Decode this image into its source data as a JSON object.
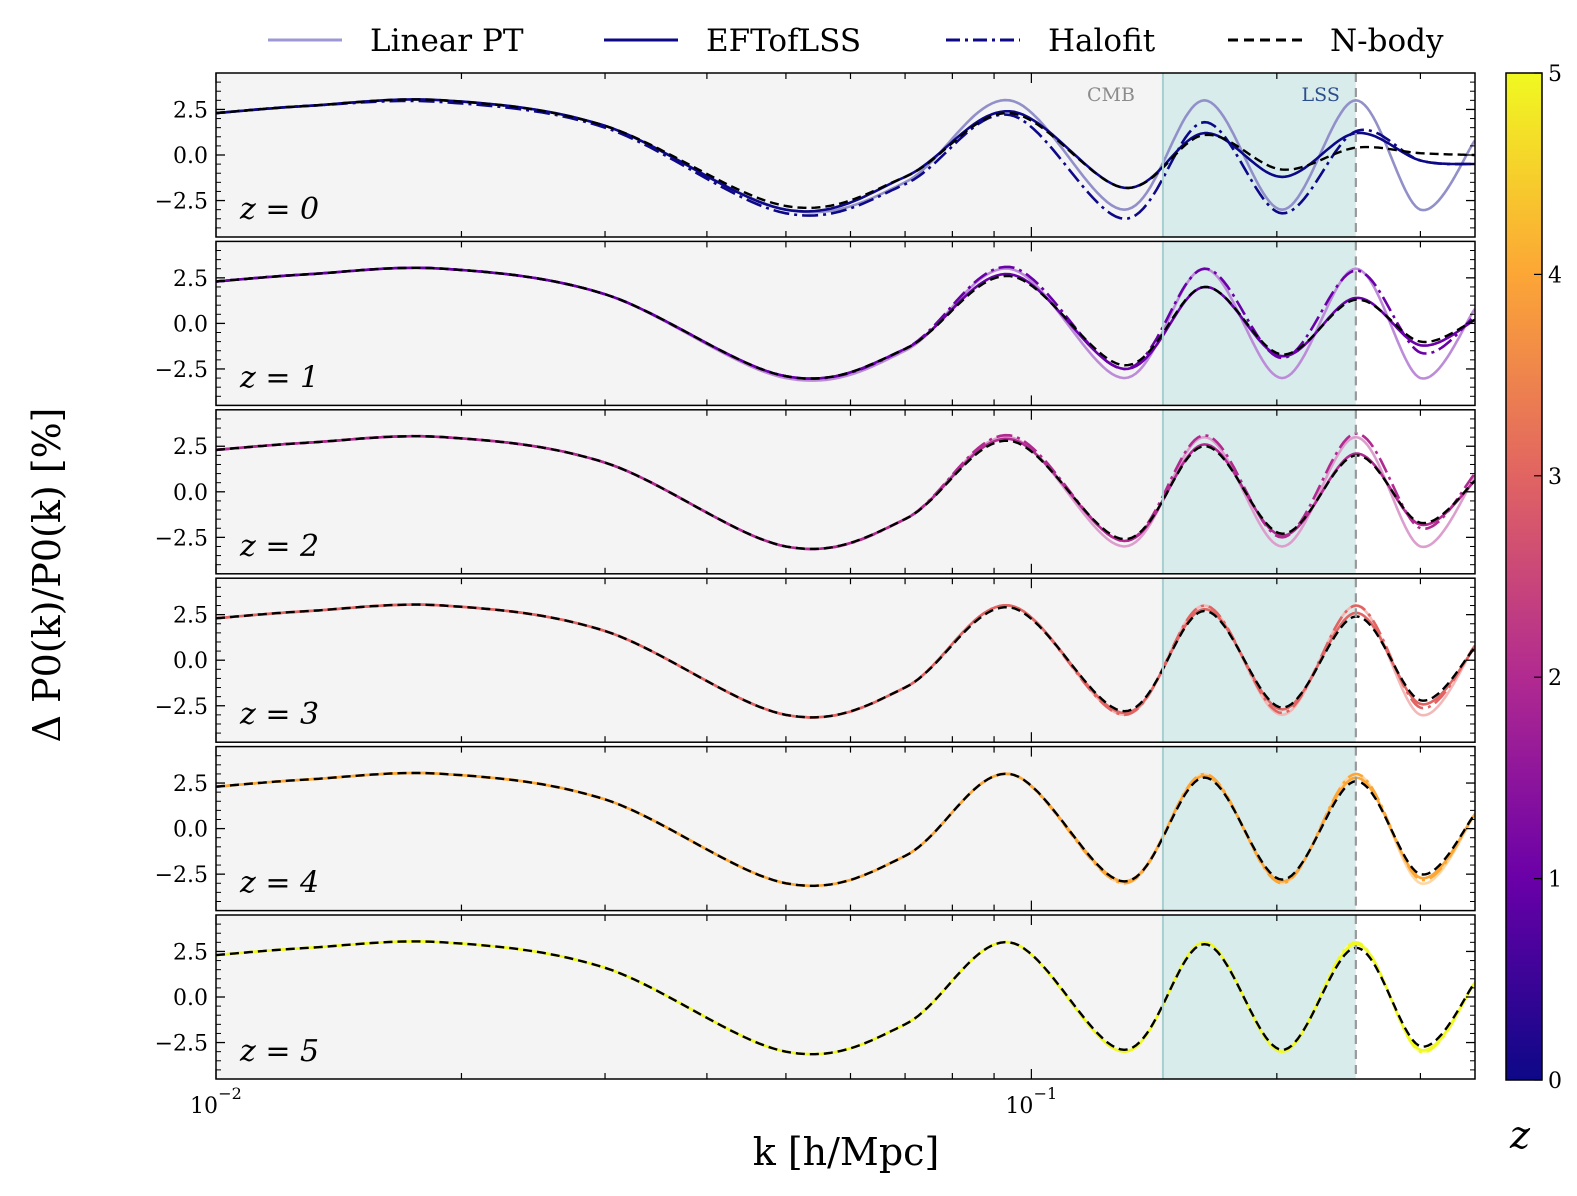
{
  "chart_data": {
    "type": "line",
    "xlabel": "k [h/Mpc]",
    "ylabel": "Δ P0(k)/P0(k) [%]",
    "x_scale": "log",
    "xlim": [
      0.01,
      0.35
    ],
    "ylim": [
      -4.5,
      4.5
    ],
    "x_ticks": [
      {
        "value": 0.01,
        "label": "10",
        "exp": "−2"
      },
      {
        "value": 0.1,
        "label": "10",
        "exp": "−1"
      }
    ],
    "y_ticks": [
      {
        "value": 2.5,
        "label": "2.5"
      },
      {
        "value": 0.0,
        "label": "0.0"
      },
      {
        "value": -2.5,
        "label": "−2.5"
      }
    ],
    "legend": {
      "placement": "top",
      "entries": [
        {
          "label": "Linear PT",
          "style": "solid-light",
          "color": "#9c98d6"
        },
        {
          "label": "EFTofLSS",
          "style": "solid",
          "color": "#0d0887"
        },
        {
          "label": "Halofit",
          "style": "dash-dot",
          "color": "#0d0887"
        },
        {
          "label": "N-body",
          "style": "dashed",
          "color": "#000000"
        }
      ]
    },
    "regions": [
      {
        "label": "CMB",
        "x_from": 0.01,
        "x_to": 0.145,
        "color": "#f4f4f4",
        "label_color": "#8c8c8c"
      },
      {
        "label": "LSS",
        "x_from": 0.145,
        "x_to": 0.25,
        "color": "#d8ecec",
        "label_color": "#2b4f8c"
      }
    ],
    "vlines": [
      0.145,
      0.25
    ],
    "colorbar": {
      "label": "z",
      "range": [
        0,
        5
      ],
      "ticks": [
        "0",
        "1",
        "2",
        "3",
        "4",
        "5"
      ],
      "colormap": [
        "#0d0887",
        "#6a00a8",
        "#b12a90",
        "#e16462",
        "#fca636",
        "#f0f921"
      ]
    },
    "panels": [
      {
        "z": 0,
        "label": "z = 0",
        "color": "#0d0887",
        "k": [
          0.01,
          0.013,
          0.019,
          0.03,
          0.05,
          0.07,
          0.094,
          0.13,
          0.163,
          0.203,
          0.25,
          0.3,
          0.35
        ],
        "linear": [
          2.3,
          2.7,
          3.0,
          1.6,
          -3.0,
          -1.5,
          3.0,
          -3.0,
          3.0,
          -3.0,
          3.0,
          -3.0,
          0.8
        ],
        "eft": [
          2.3,
          2.7,
          3.0,
          1.6,
          -3.0,
          -1.2,
          2.4,
          -1.8,
          1.2,
          -1.2,
          1.2,
          -0.3,
          -0.5
        ],
        "halofit": [
          2.3,
          2.7,
          2.9,
          1.5,
          -3.2,
          -1.6,
          2.2,
          -3.5,
          1.8,
          -3.2,
          1.3,
          -0.3,
          -0.5
        ],
        "nbody": [
          2.3,
          2.7,
          3.0,
          1.6,
          -2.8,
          -1.2,
          2.3,
          -1.8,
          1.1,
          -0.8,
          0.4,
          0.1,
          0.0
        ]
      },
      {
        "z": 1,
        "label": "z = 1",
        "color": "#6a00a8",
        "k": [
          0.01,
          0.013,
          0.019,
          0.03,
          0.05,
          0.07,
          0.094,
          0.13,
          0.163,
          0.203,
          0.25,
          0.3,
          0.35
        ],
        "linear": [
          2.3,
          2.7,
          3.0,
          1.6,
          -3.0,
          -1.5,
          3.0,
          -3.0,
          3.0,
          -3.0,
          3.0,
          -3.0,
          0.8
        ],
        "eft": [
          2.3,
          2.7,
          3.0,
          1.6,
          -2.9,
          -1.4,
          2.7,
          -2.5,
          2.0,
          -1.8,
          1.4,
          -1.2,
          0.2
        ],
        "halofit": [
          2.3,
          2.7,
          3.0,
          1.6,
          -2.9,
          -1.4,
          3.1,
          -2.5,
          3.0,
          -1.9,
          2.9,
          -1.6,
          0.4
        ],
        "nbody": [
          2.3,
          2.7,
          3.0,
          1.6,
          -2.9,
          -1.4,
          2.6,
          -2.3,
          2.0,
          -1.7,
          1.3,
          -1.0,
          0.2
        ]
      },
      {
        "z": 2,
        "label": "z = 2",
        "color": "#b12a90",
        "k": [
          0.01,
          0.013,
          0.019,
          0.03,
          0.05,
          0.07,
          0.094,
          0.13,
          0.163,
          0.203,
          0.25,
          0.3,
          0.35
        ],
        "linear": [
          2.3,
          2.7,
          3.0,
          1.6,
          -3.0,
          -1.5,
          3.0,
          -3.0,
          3.0,
          -3.0,
          3.0,
          -3.0,
          0.8
        ],
        "eft": [
          2.3,
          2.7,
          3.0,
          1.6,
          -3.0,
          -1.5,
          2.9,
          -2.7,
          2.6,
          -2.4,
          2.1,
          -1.8,
          0.6
        ],
        "halofit": [
          2.3,
          2.7,
          3.0,
          1.6,
          -3.0,
          -1.5,
          3.1,
          -2.7,
          3.1,
          -2.5,
          3.2,
          -2.0,
          1.0
        ],
        "nbody": [
          2.3,
          2.7,
          3.0,
          1.6,
          -3.0,
          -1.5,
          2.8,
          -2.6,
          2.5,
          -2.3,
          2.0,
          -1.7,
          0.6
        ]
      },
      {
        "z": 3,
        "label": "z = 3",
        "color": "#e16462",
        "k": [
          0.01,
          0.013,
          0.019,
          0.03,
          0.05,
          0.07,
          0.094,
          0.13,
          0.163,
          0.203,
          0.25,
          0.3,
          0.35
        ],
        "linear": [
          2.3,
          2.7,
          3.0,
          1.6,
          -3.0,
          -1.5,
          3.0,
          -3.0,
          3.0,
          -3.0,
          3.0,
          -3.0,
          0.8
        ],
        "eft": [
          2.3,
          2.7,
          3.0,
          1.6,
          -3.0,
          -1.5,
          3.0,
          -2.9,
          2.8,
          -2.7,
          2.6,
          -2.4,
          0.7
        ],
        "halofit": [
          2.3,
          2.7,
          3.0,
          1.6,
          -3.0,
          -1.5,
          3.0,
          -3.0,
          3.0,
          -2.9,
          3.0,
          -2.6,
          0.8
        ],
        "nbody": [
          2.3,
          2.7,
          3.0,
          1.6,
          -3.0,
          -1.5,
          2.9,
          -2.8,
          2.7,
          -2.6,
          2.4,
          -2.2,
          0.7
        ]
      },
      {
        "z": 4,
        "label": "z = 4",
        "color": "#fca636",
        "k": [
          0.01,
          0.013,
          0.019,
          0.03,
          0.05,
          0.07,
          0.094,
          0.13,
          0.163,
          0.203,
          0.25,
          0.3,
          0.35
        ],
        "linear": [
          2.3,
          2.7,
          3.0,
          1.6,
          -3.0,
          -1.5,
          3.0,
          -3.0,
          3.0,
          -3.0,
          3.0,
          -3.0,
          0.8
        ],
        "eft": [
          2.3,
          2.7,
          3.0,
          1.6,
          -3.0,
          -1.5,
          3.0,
          -2.9,
          2.9,
          -2.9,
          2.8,
          -2.7,
          0.8
        ],
        "halofit": [
          2.3,
          2.7,
          3.0,
          1.6,
          -3.0,
          -1.5,
          3.0,
          -3.0,
          3.0,
          -3.0,
          3.0,
          -2.8,
          0.8
        ],
        "nbody": [
          2.3,
          2.7,
          3.0,
          1.6,
          -3.0,
          -1.5,
          3.0,
          -2.9,
          2.8,
          -2.8,
          2.6,
          -2.5,
          0.8
        ]
      },
      {
        "z": 5,
        "label": "z = 5",
        "color": "#f0f921",
        "k": [
          0.01,
          0.013,
          0.019,
          0.03,
          0.05,
          0.07,
          0.094,
          0.13,
          0.163,
          0.203,
          0.25,
          0.3,
          0.35
        ],
        "linear": [
          2.3,
          2.7,
          3.0,
          1.6,
          -3.0,
          -1.5,
          3.0,
          -3.0,
          3.0,
          -3.0,
          3.0,
          -3.0,
          0.8
        ],
        "eft": [
          2.3,
          2.7,
          3.0,
          1.6,
          -3.0,
          -1.5,
          3.0,
          -3.0,
          3.0,
          -3.0,
          2.9,
          -2.9,
          0.8
        ],
        "halofit": [
          2.3,
          2.7,
          3.0,
          1.6,
          -3.0,
          -1.5,
          3.0,
          -3.0,
          3.0,
          -3.0,
          3.0,
          -3.0,
          0.8
        ],
        "nbody": [
          2.3,
          2.7,
          3.0,
          1.6,
          -3.0,
          -1.5,
          3.0,
          -2.9,
          2.9,
          -2.9,
          2.7,
          -2.7,
          0.8
        ]
      }
    ]
  }
}
